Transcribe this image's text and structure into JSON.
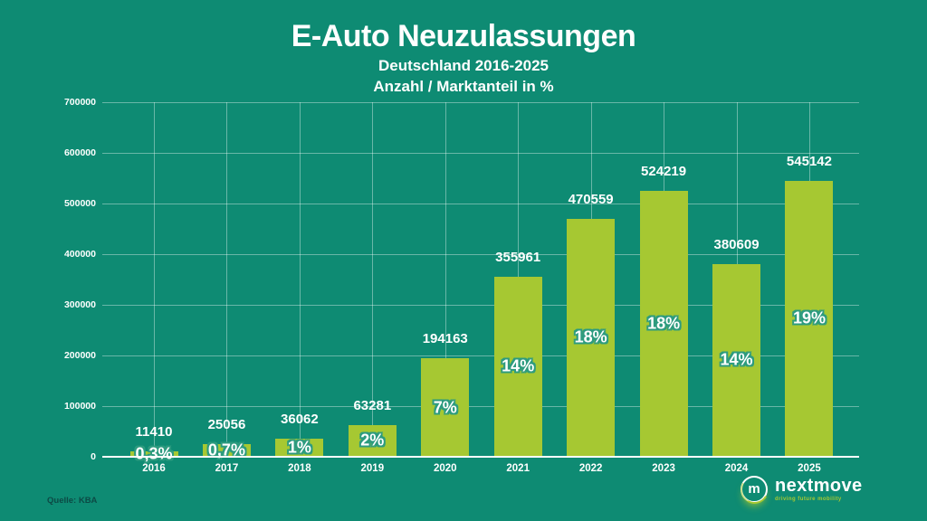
{
  "header": {
    "title": "E-Auto Neuzulassungen",
    "subtitle1": "Deutschland 2016-2025",
    "subtitle2": "Anzahl / Marktanteil in %"
  },
  "chart_data": {
    "type": "bar",
    "title": "E-Auto Neuzulassungen",
    "subtitle": "Deutschland 2016-2025 / Anzahl / Marktanteil in %",
    "categories": [
      "2016",
      "2017",
      "2018",
      "2019",
      "2020",
      "2021",
      "2022",
      "2023",
      "2024",
      "2025"
    ],
    "series": [
      {
        "name": "Neuzulassungen (Anzahl)",
        "values": [
          11410,
          25056,
          36062,
          63281,
          194163,
          355961,
          470559,
          524219,
          380609,
          545142
        ]
      },
      {
        "name": "Marktanteil (%)",
        "values": [
          0.3,
          0.7,
          1,
          2,
          7,
          14,
          18,
          18,
          14,
          19
        ]
      }
    ],
    "value_labels": [
      "11410",
      "25056",
      "36062",
      "63281",
      "194163",
      "355961",
      "470559",
      "524219",
      "380609",
      "545142"
    ],
    "share_labels": [
      "0,3%",
      "0,7%",
      "1%",
      "2%",
      "7%",
      "14%",
      "18%",
      "18%",
      "14%",
      "19%"
    ],
    "ylim": [
      0,
      700000
    ],
    "ytick_step": 100000,
    "ytick_labels": [
      "0",
      "100000",
      "200000",
      "300000",
      "400000",
      "500000",
      "600000",
      "700000"
    ],
    "grid": true,
    "legend_position": "none",
    "xlabel": "",
    "ylabel": ""
  },
  "footer": {
    "source": "Quelle: KBA"
  },
  "logo": {
    "monogram": "m",
    "name": "nextmove",
    "tagline": "driving future mobility"
  },
  "colors": {
    "background": "#0e8b73",
    "bar": "#a6c832",
    "text": "#ffffff",
    "share_outline": "#2d9b7f",
    "grid": "rgba(255,255,255,0.38)",
    "source_text": "#0c4a45",
    "logo_accent": "#a6c832"
  }
}
